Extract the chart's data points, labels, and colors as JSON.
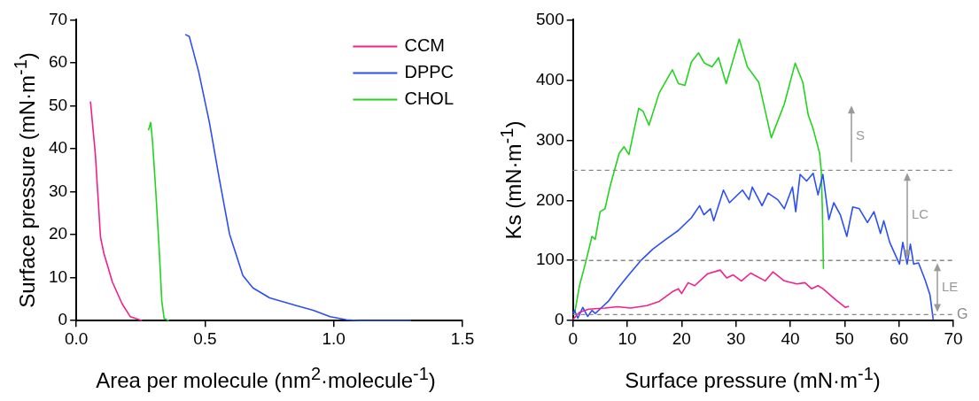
{
  "chart_data": [
    {
      "type": "line",
      "xlabel": "Area per molecule (nm$^{2}$·molecule$^{-1}$)",
      "ylabel": "Surface pressure (mN·m$^{-1}$)",
      "xlim": [
        0,
        1.5
      ],
      "xticks": [
        {
          "value": 0,
          "label": "0.0"
        },
        {
          "value": 0.5,
          "label": "0.5"
        },
        {
          "value": 1,
          "label": "1.0"
        },
        {
          "value": 1.5,
          "label": "1.5"
        }
      ],
      "ylim": [
        0,
        70
      ],
      "yticks": [
        0,
        10,
        20,
        30,
        40,
        50,
        60,
        70
      ],
      "grid": false,
      "legend": "top right",
      "marker": "none",
      "series": [
        {
          "name": "CCM",
          "color": "#f0218c",
          "x": [
            0.055,
            0.074,
            0.094,
            0.107,
            0.14,
            0.178,
            0.21,
            0.256
          ],
          "values": [
            51,
            38.7,
            19.4,
            15.7,
            9,
            3.9,
            0.9,
            0
          ]
        },
        {
          "name": "DPPC",
          "color": "#2b4ef5",
          "x": [
            0.423,
            0.439,
            0.475,
            0.517,
            0.556,
            0.595,
            0.647,
            0.686,
            0.751,
            0.855,
            0.92,
            0.986,
            1.05,
            1.1,
            1.3
          ],
          "values": [
            66.6,
            66.1,
            58,
            46.1,
            32.8,
            20.2,
            10.5,
            7.6,
            5.3,
            3.5,
            2.4,
            0.9,
            0.2,
            0,
            0
          ]
        },
        {
          "name": "CHOL",
          "color": "#22d41e",
          "x": [
            0.28,
            0.289,
            0.296,
            0.309,
            0.322,
            0.332,
            0.341,
            0.36
          ],
          "values": [
            44.3,
            46.1,
            41.7,
            29.8,
            16.5,
            4.6,
            0.5,
            0
          ]
        }
      ]
    },
    {
      "type": "line",
      "xlabel": "Surface pressure (mN·m$^{-1}$)",
      "ylabel": "Ks (mN·m$^{-1}$)",
      "xlim": [
        0,
        70
      ],
      "xticks": [
        0,
        10,
        20,
        30,
        40,
        50,
        60,
        70
      ],
      "ylim": [
        0,
        500
      ],
      "yticks": [
        0,
        100,
        200,
        300,
        400,
        500
      ],
      "grid": false,
      "marker": "none",
      "ref_lines": [
        {
          "axis": "y",
          "value": 10,
          "label": "G",
          "color": "#888888",
          "line_style": "dashed"
        },
        {
          "axis": "y",
          "value": 100,
          "color": "#888888",
          "line_style": "dashed"
        },
        {
          "axis": "y",
          "value": 250,
          "color": "#888888",
          "line_style": "dashed"
        }
      ],
      "annotations": [
        "LE",
        "LC",
        "S"
      ],
      "series": [
        {
          "color": "#f0218c",
          "x": [
            0,
            1.2,
            2.9,
            5.9,
            8.2,
            10.6,
            13.6,
            15.9,
            18.3,
            19.4,
            20,
            21.2,
            22.4,
            24.8,
            27.1,
            28.3,
            29.5,
            31,
            32.7,
            35.4,
            36.8,
            38.9,
            41.2,
            42.7,
            43.9,
            45.1,
            46,
            48.3,
            50.1,
            50.8
          ],
          "values": [
            2,
            14,
            19,
            21,
            23,
            21,
            25,
            32,
            48,
            53,
            45,
            63,
            58,
            78,
            84,
            71,
            76,
            66,
            79,
            66,
            81,
            66,
            61,
            63,
            53,
            58,
            53,
            35,
            22,
            24
          ]
        },
        {
          "color": "#2b4ef5",
          "x": [
            0,
            0.3,
            0.9,
            1.8,
            2.7,
            3.5,
            4.1,
            5.3,
            6.5,
            8.2,
            10,
            12.4,
            14.7,
            17.1,
            19.4,
            21.8,
            23.3,
            24.1,
            25.3,
            25.9,
            27.7,
            28.8,
            31.2,
            32.4,
            33,
            34.8,
            35.9,
            37.7,
            38.9,
            40.4,
            41,
            41.8,
            43,
            44.2,
            45.1,
            46,
            47.1,
            48,
            49.2,
            50.4,
            51.5,
            52.7,
            54.2,
            55.4,
            56.6,
            57.2,
            58.3,
            60.1,
            60.7,
            61.5,
            62.1,
            62.7,
            63.6,
            64.8,
            65.7,
            66.3
          ],
          "values": [
            12,
            17,
            4,
            22,
            7,
            17,
            12,
            22,
            32,
            53,
            73,
            99,
            119,
            135,
            150,
            171,
            191,
            176,
            186,
            166,
            217,
            196,
            217,
            201,
            222,
            191,
            212,
            201,
            186,
            222,
            181,
            243,
            232,
            245,
            209,
            243,
            168,
            196,
            176,
            140,
            189,
            186,
            163,
            181,
            145,
            166,
            130,
            94,
            130,
            94,
            127,
            94,
            96,
            68,
            43,
            2
          ]
        },
        {
          "color": "#22d41e",
          "x": [
            0.3,
            1.2,
            2.4,
            3.5,
            4.1,
            5,
            5.9,
            6.8,
            8.5,
            9.4,
            10.3,
            12.1,
            12.9,
            14,
            15.9,
            18.3,
            19.4,
            20.6,
            21.8,
            23.1,
            24.2,
            25.6,
            26.8,
            28.2,
            30.6,
            32.1,
            34.2,
            36.5,
            38.9,
            40.9,
            42.3,
            43.3,
            44.2,
            45.4,
            45.7,
            45.9,
            46.1
          ],
          "values": [
            12,
            58,
            99,
            140,
            135,
            181,
            186,
            222,
            278,
            289,
            276,
            353,
            348,
            325,
            379,
            417,
            394,
            391,
            430,
            445,
            428,
            422,
            437,
            394,
            468,
            422,
            396,
            304,
            360,
            428,
            396,
            342,
            319,
            278,
            248,
            186,
            86
          ]
        }
      ]
    }
  ]
}
